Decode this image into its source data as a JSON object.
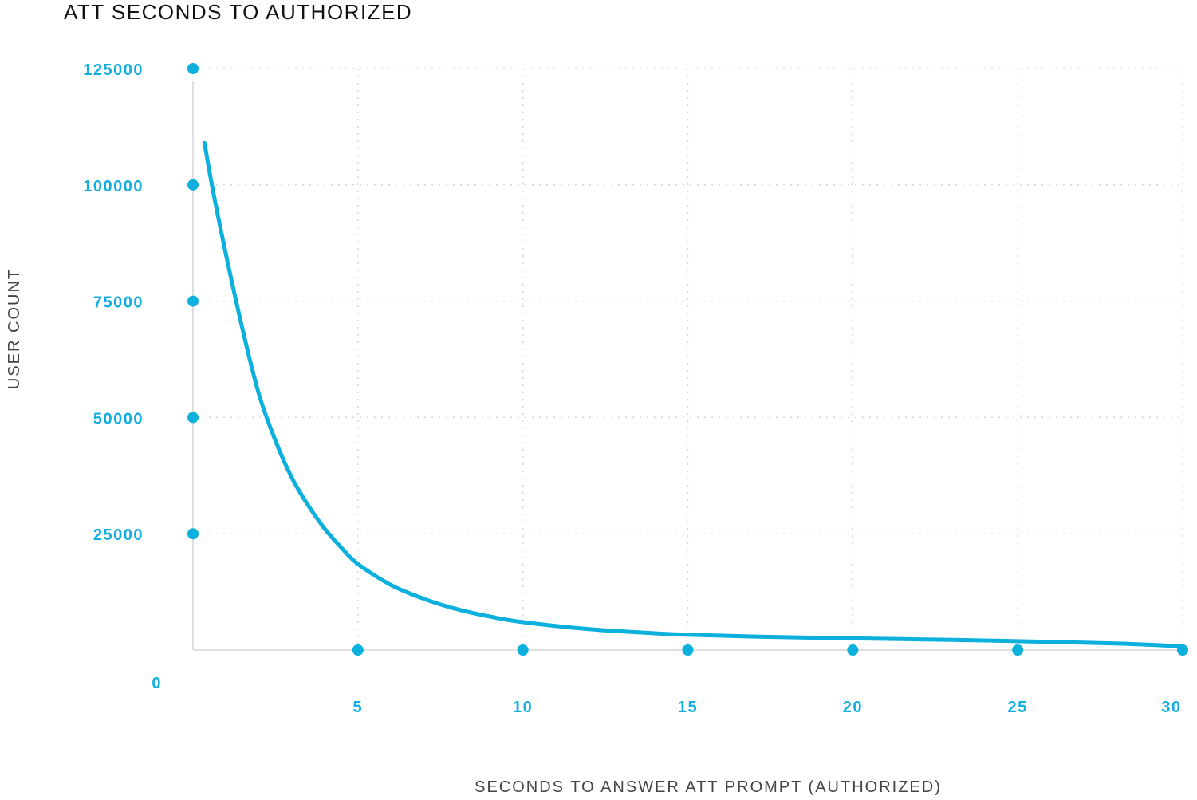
{
  "chart_data": {
    "type": "scatter",
    "title": "ATT SECONDS TO AUTHORIZED",
    "xlabel": "SECONDS TO ANSWER ATT PROMPT (AUTHORIZED)",
    "ylabel": "USER COUNT",
    "xlim": [
      0,
      30
    ],
    "ylim": [
      0,
      125000
    ],
    "x_ticks": [
      "5",
      "10",
      "15",
      "20",
      "25",
      "30"
    ],
    "y_ticks": [
      "125000",
      "100000",
      "75000",
      "50000",
      "25000",
      "0"
    ],
    "grid": true,
    "series": [
      {
        "points_x_axis": [
          [
            5,
            0
          ],
          [
            10,
            0
          ],
          [
            15,
            0
          ],
          [
            20,
            0
          ],
          [
            25,
            0
          ],
          [
            30,
            0
          ]
        ],
        "points_y_axis": [
          [
            0,
            125000
          ],
          [
            0,
            100000
          ],
          [
            0,
            75000
          ],
          [
            0,
            50000
          ],
          [
            0,
            25000
          ]
        ],
        "curve": [
          [
            0.35,
            109000
          ],
          [
            0.6,
            99000
          ],
          [
            1,
            85000
          ],
          [
            1.5,
            69000
          ],
          [
            2,
            55000
          ],
          [
            2.5,
            45000
          ],
          [
            3,
            37000
          ],
          [
            3.5,
            31000
          ],
          [
            4,
            26000
          ],
          [
            4.5,
            22000
          ],
          [
            5,
            18500
          ],
          [
            6,
            14000
          ],
          [
            7,
            11000
          ],
          [
            8,
            8800
          ],
          [
            9,
            7200
          ],
          [
            10,
            6000
          ],
          [
            12,
            4500
          ],
          [
            14,
            3600
          ],
          [
            15,
            3300
          ],
          [
            17,
            2900
          ],
          [
            20,
            2500
          ],
          [
            23,
            2200
          ],
          [
            25,
            1900
          ],
          [
            28,
            1400
          ],
          [
            30,
            800
          ]
        ]
      }
    ]
  },
  "colors": {
    "accent": "#0bb0dd",
    "tick": "#12aee0",
    "grid": "#d8d8d8",
    "axis": "#e0e0e0",
    "title": "#111111",
    "label": "#444444"
  }
}
